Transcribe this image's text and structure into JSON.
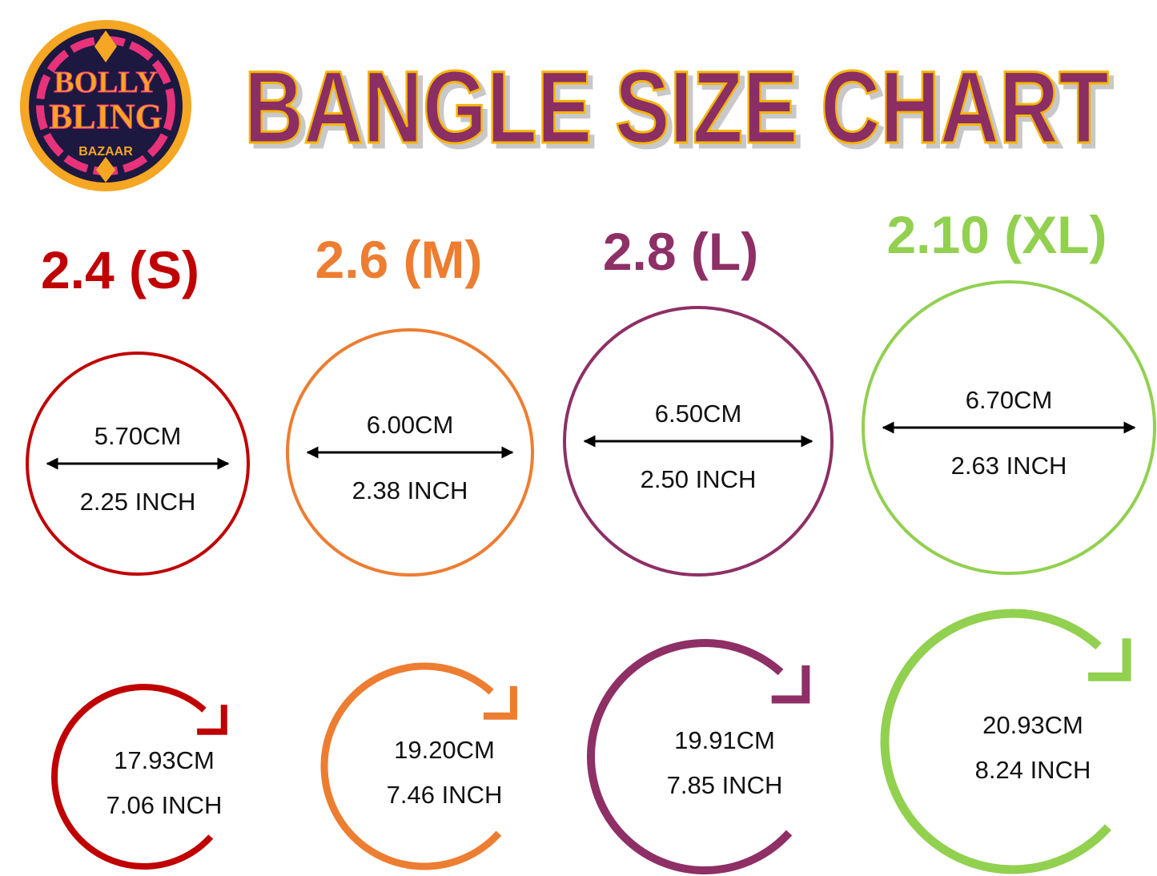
{
  "logo": {
    "line1": "BOLLY",
    "line2": "BLING",
    "line3": "BAZAAR"
  },
  "title": "BANGLE SIZE CHART",
  "colors": {
    "title": "#8b2f63",
    "title_outline": "#f5b400",
    "logo_bg": "#1c1840",
    "logo_ring": "#f5a623",
    "logo_pink": "#e8327a"
  },
  "sizes": [
    {
      "label": "2.4 (S)",
      "color": "#c00000",
      "diameter_cm": "5.70CM",
      "diameter_inch": "2.25 INCH",
      "circumference_cm": "17.93CM",
      "circumference_inch": "7.06 INCH"
    },
    {
      "label": "2.6 (M)",
      "color": "#ed7d31",
      "diameter_cm": "6.00CM",
      "diameter_inch": "2.38 INCH",
      "circumference_cm": "19.20CM",
      "circumference_inch": "7.46 INCH"
    },
    {
      "label": "2.8 (L)",
      "color": "#8e2f66",
      "diameter_cm": "6.50CM",
      "diameter_inch": "2.50 INCH",
      "circumference_cm": "19.91CM",
      "circumference_inch": "7.85 INCH"
    },
    {
      "label": "2.10 (XL)",
      "color": "#92d050",
      "diameter_cm": "6.70CM",
      "diameter_inch": "2.63 INCH",
      "circumference_cm": "20.93CM",
      "circumference_inch": "8.24 INCH"
    }
  ]
}
